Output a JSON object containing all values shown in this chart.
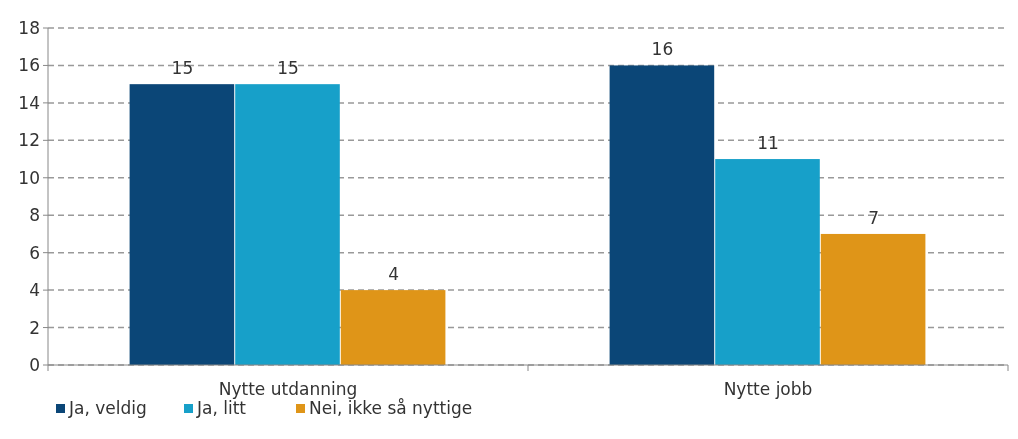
{
  "chart_data": {
    "type": "bar",
    "categories": [
      "Nytte utdanning",
      "Nytte jobb"
    ],
    "series": [
      {
        "name": "Ja, veldig",
        "color": "#0b4677",
        "values": [
          15,
          16
        ]
      },
      {
        "name": "Ja, litt",
        "color": "#17a0c9",
        "values": [
          15,
          11
        ]
      },
      {
        "name": "Nei, ikke så nyttige",
        "color": "#df9518",
        "values": [
          4,
          7
        ]
      }
    ],
    "ylim": [
      0,
      18
    ],
    "yticks": [
      0,
      2,
      4,
      6,
      8,
      10,
      12,
      14,
      16,
      18
    ],
    "grid": "y",
    "legend": "bottom left",
    "data_labels": true
  }
}
